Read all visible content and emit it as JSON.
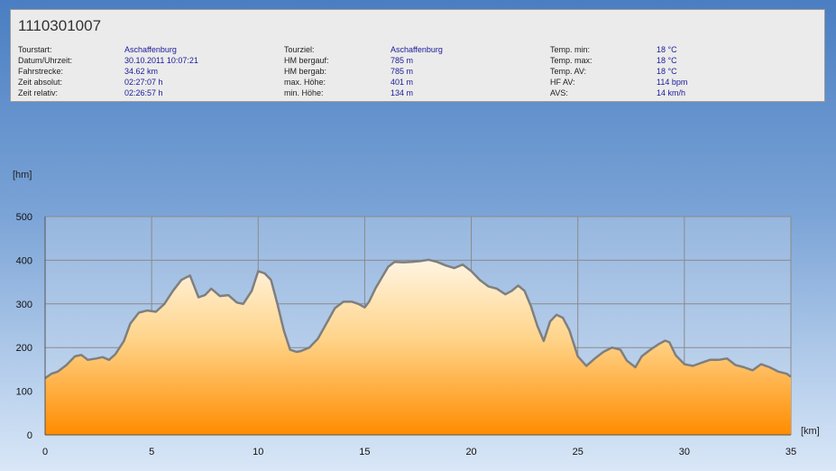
{
  "panel": {
    "title": "1110301007",
    "columns": [
      [
        {
          "label": "Tourstart:",
          "value": "Aschaffenburg"
        },
        {
          "label": "Datum/Uhrzeit:",
          "value": "30.10.2011 10:07:21"
        },
        {
          "label": "Fahrstrecke:",
          "value": "34.62 km"
        },
        {
          "label": "Zeit absolut:",
          "value": "02:27:07 h"
        },
        {
          "label": "Zeit relativ:",
          "value": "02:26:57 h"
        }
      ],
      [
        {
          "label": "Tourziel:",
          "value": "Aschaffenburg"
        },
        {
          "label": "HM bergauf:",
          "value": "785 m"
        },
        {
          "label": "HM bergab:",
          "value": "785 m"
        },
        {
          "label": "max. Höhe:",
          "value": "401 m"
        },
        {
          "label": "min. Höhe:",
          "value": "134 m"
        }
      ],
      [
        {
          "label": "Temp. min:",
          "value": "18 °C"
        },
        {
          "label": "Temp. max:",
          "value": "18 °C"
        },
        {
          "label": "Temp. AV:",
          "value": "18 °C"
        },
        {
          "label": "HF AV:",
          "value": "114 bpm"
        },
        {
          "label": "AVS:",
          "value": "14 km/h"
        }
      ]
    ]
  },
  "chart_data": {
    "type": "area",
    "ylabel": "[hm]",
    "xlabel": "[km]",
    "xlim": [
      0,
      35
    ],
    "ylim": [
      0,
      500
    ],
    "xticks": [
      0,
      5,
      10,
      15,
      20,
      25,
      30,
      35
    ],
    "yticks": [
      0,
      100,
      200,
      300,
      400,
      500
    ],
    "grid": true,
    "colors": {
      "line": "#7f7f7f",
      "fill_top": "#fff5e3",
      "fill_bottom": "#ff8c00",
      "grid": "#8a8a8a"
    },
    "x": [
      0,
      0.3,
      0.6,
      1.0,
      1.4,
      1.7,
      2.0,
      2.4,
      2.7,
      3.0,
      3.3,
      3.7,
      4.0,
      4.4,
      4.8,
      5.2,
      5.6,
      6.0,
      6.4,
      6.8,
      7.0,
      7.2,
      7.5,
      7.8,
      8.2,
      8.6,
      9.0,
      9.3,
      9.7,
      10.0,
      10.3,
      10.6,
      10.9,
      11.2,
      11.5,
      11.8,
      12.0,
      12.4,
      12.8,
      13.2,
      13.6,
      14.0,
      14.4,
      14.7,
      15.0,
      15.2,
      15.5,
      15.8,
      16.1,
      16.4,
      16.8,
      17.2,
      17.6,
      18.0,
      18.4,
      18.8,
      19.2,
      19.6,
      20.0,
      20.4,
      20.8,
      21.2,
      21.6,
      21.9,
      22.2,
      22.5,
      22.8,
      23.1,
      23.4,
      23.7,
      24.0,
      24.3,
      24.6,
      25.0,
      25.4,
      25.8,
      26.2,
      26.6,
      27.0,
      27.3,
      27.7,
      28.0,
      28.4,
      28.8,
      29.1,
      29.3,
      29.6,
      30.0,
      30.4,
      30.8,
      31.2,
      31.6,
      32.0,
      32.4,
      32.8,
      33.2,
      33.6,
      34.0,
      34.4,
      34.8,
      35.0
    ],
    "values": [
      130,
      140,
      145,
      160,
      180,
      183,
      172,
      175,
      178,
      172,
      185,
      215,
      255,
      280,
      285,
      282,
      300,
      330,
      355,
      365,
      340,
      315,
      320,
      335,
      318,
      320,
      303,
      300,
      330,
      375,
      370,
      355,
      300,
      240,
      195,
      190,
      192,
      200,
      220,
      255,
      290,
      305,
      305,
      300,
      292,
      305,
      335,
      360,
      385,
      396,
      395,
      396,
      398,
      401,
      396,
      388,
      382,
      390,
      375,
      355,
      340,
      335,
      322,
      330,
      342,
      330,
      295,
      250,
      215,
      260,
      275,
      268,
      240,
      180,
      158,
      175,
      190,
      200,
      195,
      170,
      155,
      180,
      195,
      208,
      216,
      212,
      182,
      162,
      158,
      165,
      172,
      172,
      175,
      160,
      155,
      148,
      162,
      155,
      145,
      140,
      133
    ]
  }
}
